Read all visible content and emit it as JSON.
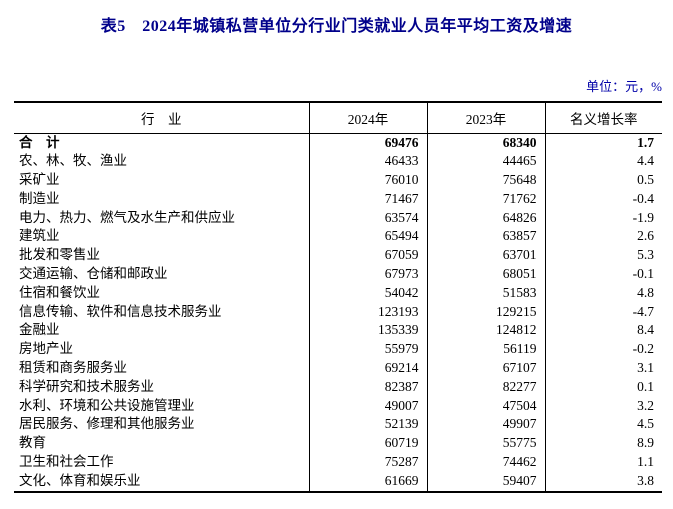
{
  "page": {
    "title": "表5　2024年城镇私营单位分行业门类就业人员年平均工资及增速",
    "unit_label": "单位：元，%"
  },
  "colors": {
    "title_text": "#00008B",
    "unit_text": "#0000A8",
    "body_text": "#000000",
    "border": "#000000",
    "background": "#FFFFFF"
  },
  "table": {
    "columns": [
      "行　业",
      "2024年",
      "2023年",
      "名义增长率"
    ],
    "rows": [
      {
        "industry": "合　计",
        "y2024": "69476",
        "y2023": "68340",
        "growth": "1.7",
        "bold": true
      },
      {
        "industry": "农、林、牧、渔业",
        "y2024": "46433",
        "y2023": "44465",
        "growth": "4.4",
        "bold": false
      },
      {
        "industry": "采矿业",
        "y2024": "76010",
        "y2023": "75648",
        "growth": "0.5",
        "bold": false
      },
      {
        "industry": "制造业",
        "y2024": "71467",
        "y2023": "71762",
        "growth": "-0.4",
        "bold": false
      },
      {
        "industry": "电力、热力、燃气及水生产和供应业",
        "y2024": "63574",
        "y2023": "64826",
        "growth": "-1.9",
        "bold": false
      },
      {
        "industry": "建筑业",
        "y2024": "65494",
        "y2023": "63857",
        "growth": "2.6",
        "bold": false
      },
      {
        "industry": "批发和零售业",
        "y2024": "67059",
        "y2023": "63701",
        "growth": "5.3",
        "bold": false
      },
      {
        "industry": "交通运输、仓储和邮政业",
        "y2024": "67973",
        "y2023": "68051",
        "growth": "-0.1",
        "bold": false
      },
      {
        "industry": "住宿和餐饮业",
        "y2024": "54042",
        "y2023": "51583",
        "growth": "4.8",
        "bold": false
      },
      {
        "industry": "信息传输、软件和信息技术服务业",
        "y2024": "123193",
        "y2023": "129215",
        "growth": "-4.7",
        "bold": false
      },
      {
        "industry": "金融业",
        "y2024": "135339",
        "y2023": "124812",
        "growth": "8.4",
        "bold": false
      },
      {
        "industry": "房地产业",
        "y2024": "55979",
        "y2023": "56119",
        "growth": "-0.2",
        "bold": false
      },
      {
        "industry": "租赁和商务服务业",
        "y2024": "69214",
        "y2023": "67107",
        "growth": "3.1",
        "bold": false
      },
      {
        "industry": "科学研究和技术服务业",
        "y2024": "82387",
        "y2023": "82277",
        "growth": "0.1",
        "bold": false
      },
      {
        "industry": "水利、环境和公共设施管理业",
        "y2024": "49007",
        "y2023": "47504",
        "growth": "3.2",
        "bold": false
      },
      {
        "industry": "居民服务、修理和其他服务业",
        "y2024": "52139",
        "y2023": "49907",
        "growth": "4.5",
        "bold": false
      },
      {
        "industry": "教育",
        "y2024": "60719",
        "y2023": "55775",
        "growth": "8.9",
        "bold": false
      },
      {
        "industry": "卫生和社会工作",
        "y2024": "75287",
        "y2023": "74462",
        "growth": "1.1",
        "bold": false
      },
      {
        "industry": "文化、体育和娱乐业",
        "y2024": "61669",
        "y2023": "59407",
        "growth": "3.8",
        "bold": false
      }
    ]
  }
}
